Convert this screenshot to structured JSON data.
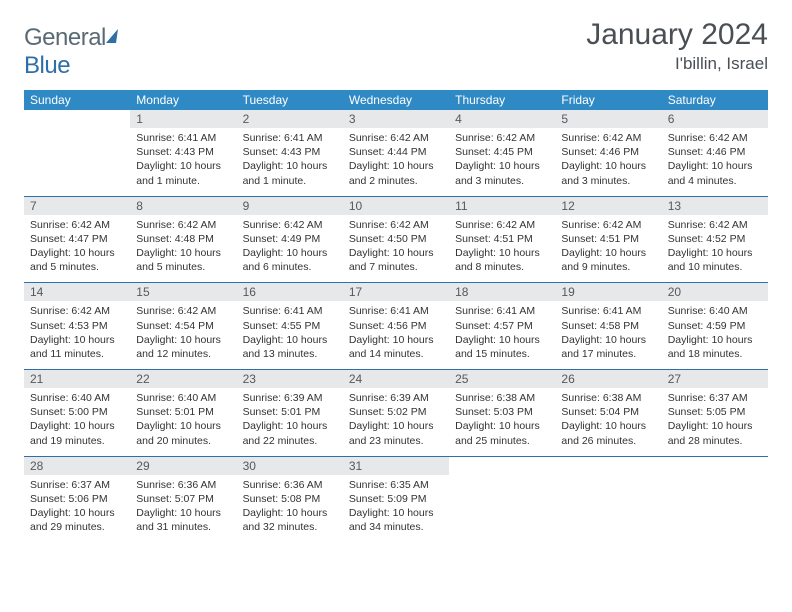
{
  "logo": {
    "part1": "General",
    "part2": "Blue"
  },
  "title": "January 2024",
  "location": "I'billin, Israel",
  "colors": {
    "header_bg": "#2f89c4",
    "header_text": "#ffffff",
    "daynum_bg": "#e7e8e9",
    "separator": "#2f6fa8",
    "title_color": "#4a4f55"
  },
  "daynames": [
    "Sunday",
    "Monday",
    "Tuesday",
    "Wednesday",
    "Thursday",
    "Friday",
    "Saturday"
  ],
  "weeks": [
    [
      null,
      {
        "n": "1",
        "sr": "Sunrise: 6:41 AM",
        "ss": "Sunset: 4:43 PM",
        "dl": "Daylight: 10 hours and 1 minute."
      },
      {
        "n": "2",
        "sr": "Sunrise: 6:41 AM",
        "ss": "Sunset: 4:43 PM",
        "dl": "Daylight: 10 hours and 1 minute."
      },
      {
        "n": "3",
        "sr": "Sunrise: 6:42 AM",
        "ss": "Sunset: 4:44 PM",
        "dl": "Daylight: 10 hours and 2 minutes."
      },
      {
        "n": "4",
        "sr": "Sunrise: 6:42 AM",
        "ss": "Sunset: 4:45 PM",
        "dl": "Daylight: 10 hours and 3 minutes."
      },
      {
        "n": "5",
        "sr": "Sunrise: 6:42 AM",
        "ss": "Sunset: 4:46 PM",
        "dl": "Daylight: 10 hours and 3 minutes."
      },
      {
        "n": "6",
        "sr": "Sunrise: 6:42 AM",
        "ss": "Sunset: 4:46 PM",
        "dl": "Daylight: 10 hours and 4 minutes."
      }
    ],
    [
      {
        "n": "7",
        "sr": "Sunrise: 6:42 AM",
        "ss": "Sunset: 4:47 PM",
        "dl": "Daylight: 10 hours and 5 minutes."
      },
      {
        "n": "8",
        "sr": "Sunrise: 6:42 AM",
        "ss": "Sunset: 4:48 PM",
        "dl": "Daylight: 10 hours and 5 minutes."
      },
      {
        "n": "9",
        "sr": "Sunrise: 6:42 AM",
        "ss": "Sunset: 4:49 PM",
        "dl": "Daylight: 10 hours and 6 minutes."
      },
      {
        "n": "10",
        "sr": "Sunrise: 6:42 AM",
        "ss": "Sunset: 4:50 PM",
        "dl": "Daylight: 10 hours and 7 minutes."
      },
      {
        "n": "11",
        "sr": "Sunrise: 6:42 AM",
        "ss": "Sunset: 4:51 PM",
        "dl": "Daylight: 10 hours and 8 minutes."
      },
      {
        "n": "12",
        "sr": "Sunrise: 6:42 AM",
        "ss": "Sunset: 4:51 PM",
        "dl": "Daylight: 10 hours and 9 minutes."
      },
      {
        "n": "13",
        "sr": "Sunrise: 6:42 AM",
        "ss": "Sunset: 4:52 PM",
        "dl": "Daylight: 10 hours and 10 minutes."
      }
    ],
    [
      {
        "n": "14",
        "sr": "Sunrise: 6:42 AM",
        "ss": "Sunset: 4:53 PM",
        "dl": "Daylight: 10 hours and 11 minutes."
      },
      {
        "n": "15",
        "sr": "Sunrise: 6:42 AM",
        "ss": "Sunset: 4:54 PM",
        "dl": "Daylight: 10 hours and 12 minutes."
      },
      {
        "n": "16",
        "sr": "Sunrise: 6:41 AM",
        "ss": "Sunset: 4:55 PM",
        "dl": "Daylight: 10 hours and 13 minutes."
      },
      {
        "n": "17",
        "sr": "Sunrise: 6:41 AM",
        "ss": "Sunset: 4:56 PM",
        "dl": "Daylight: 10 hours and 14 minutes."
      },
      {
        "n": "18",
        "sr": "Sunrise: 6:41 AM",
        "ss": "Sunset: 4:57 PM",
        "dl": "Daylight: 10 hours and 15 minutes."
      },
      {
        "n": "19",
        "sr": "Sunrise: 6:41 AM",
        "ss": "Sunset: 4:58 PM",
        "dl": "Daylight: 10 hours and 17 minutes."
      },
      {
        "n": "20",
        "sr": "Sunrise: 6:40 AM",
        "ss": "Sunset: 4:59 PM",
        "dl": "Daylight: 10 hours and 18 minutes."
      }
    ],
    [
      {
        "n": "21",
        "sr": "Sunrise: 6:40 AM",
        "ss": "Sunset: 5:00 PM",
        "dl": "Daylight: 10 hours and 19 minutes."
      },
      {
        "n": "22",
        "sr": "Sunrise: 6:40 AM",
        "ss": "Sunset: 5:01 PM",
        "dl": "Daylight: 10 hours and 20 minutes."
      },
      {
        "n": "23",
        "sr": "Sunrise: 6:39 AM",
        "ss": "Sunset: 5:01 PM",
        "dl": "Daylight: 10 hours and 22 minutes."
      },
      {
        "n": "24",
        "sr": "Sunrise: 6:39 AM",
        "ss": "Sunset: 5:02 PM",
        "dl": "Daylight: 10 hours and 23 minutes."
      },
      {
        "n": "25",
        "sr": "Sunrise: 6:38 AM",
        "ss": "Sunset: 5:03 PM",
        "dl": "Daylight: 10 hours and 25 minutes."
      },
      {
        "n": "26",
        "sr": "Sunrise: 6:38 AM",
        "ss": "Sunset: 5:04 PM",
        "dl": "Daylight: 10 hours and 26 minutes."
      },
      {
        "n": "27",
        "sr": "Sunrise: 6:37 AM",
        "ss": "Sunset: 5:05 PM",
        "dl": "Daylight: 10 hours and 28 minutes."
      }
    ],
    [
      {
        "n": "28",
        "sr": "Sunrise: 6:37 AM",
        "ss": "Sunset: 5:06 PM",
        "dl": "Daylight: 10 hours and 29 minutes."
      },
      {
        "n": "29",
        "sr": "Sunrise: 6:36 AM",
        "ss": "Sunset: 5:07 PM",
        "dl": "Daylight: 10 hours and 31 minutes."
      },
      {
        "n": "30",
        "sr": "Sunrise: 6:36 AM",
        "ss": "Sunset: 5:08 PM",
        "dl": "Daylight: 10 hours and 32 minutes."
      },
      {
        "n": "31",
        "sr": "Sunrise: 6:35 AM",
        "ss": "Sunset: 5:09 PM",
        "dl": "Daylight: 10 hours and 34 minutes."
      },
      null,
      null,
      null
    ]
  ]
}
